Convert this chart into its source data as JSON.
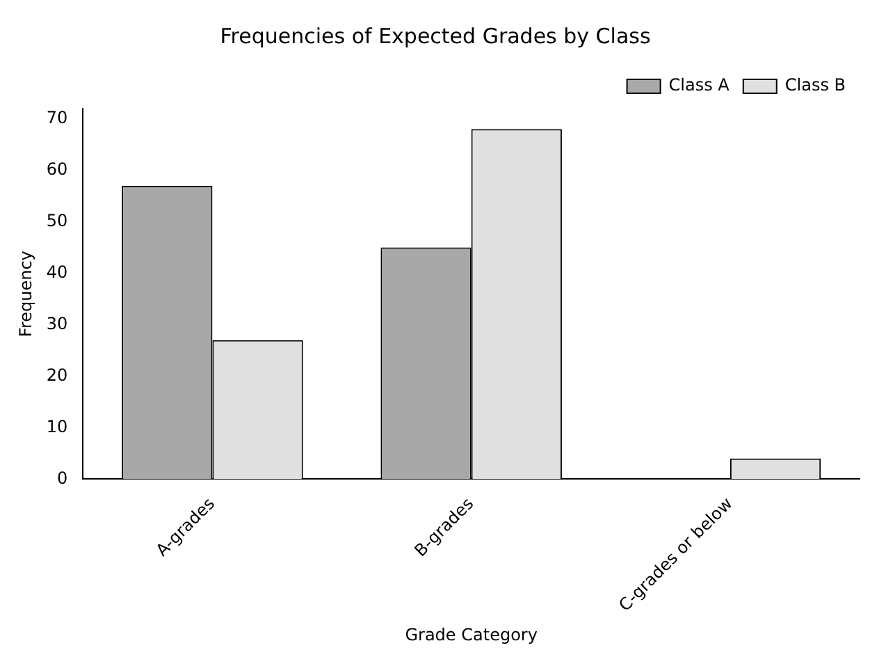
{
  "chart_data": {
    "type": "bar",
    "title": "Frequencies of Expected Grades by Class",
    "xlabel": "Grade Category",
    "ylabel": "Frequency",
    "categories": [
      "A-grades",
      "B-grades",
      "C-grades or below"
    ],
    "series": [
      {
        "name": "Class A",
        "color": "#a8a8a8",
        "values": [
          57,
          45,
          0
        ]
      },
      {
        "name": "Class B",
        "color": "#e0e0e0",
        "values": [
          27,
          68,
          4
        ]
      }
    ],
    "ylim": [
      0,
      72
    ],
    "yticks": [
      0,
      10,
      20,
      30,
      40,
      50,
      60,
      70
    ],
    "legend": "top right"
  }
}
